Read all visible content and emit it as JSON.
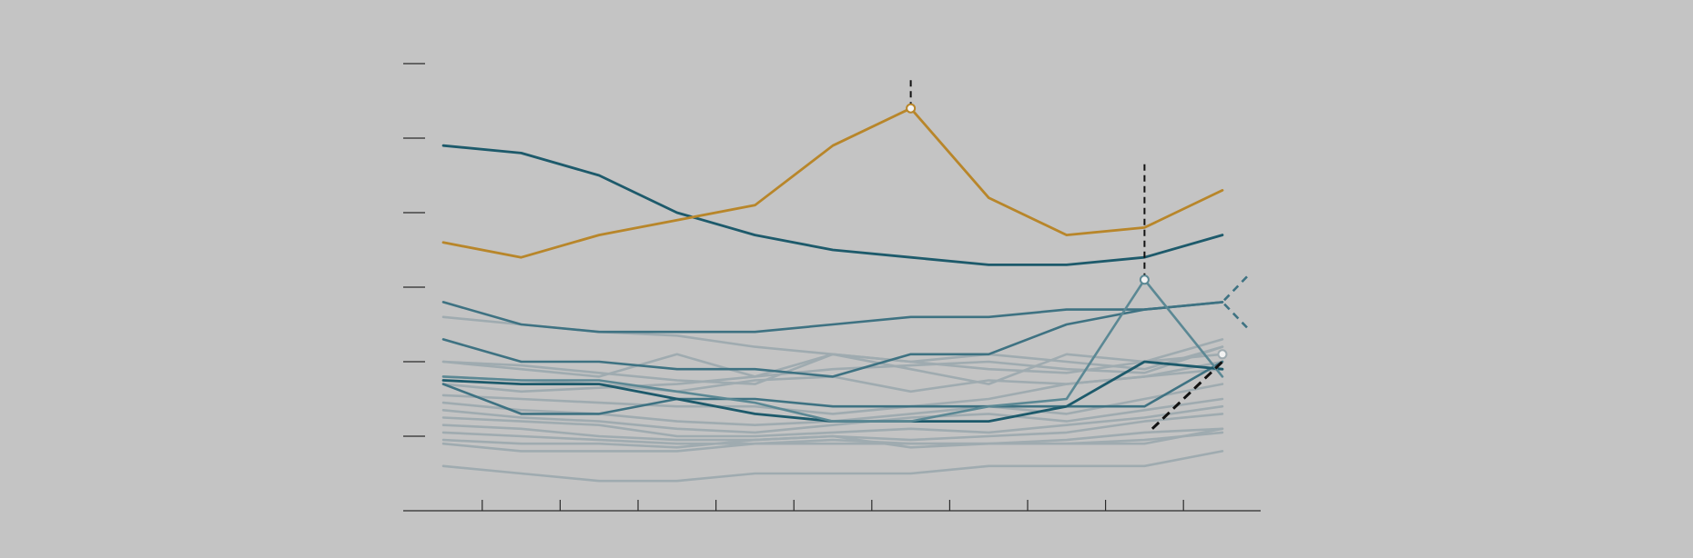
{
  "chart_data": {
    "type": "line",
    "title": "",
    "xlabel": "",
    "ylabel": "",
    "x": [
      0,
      1,
      2,
      3,
      4,
      5,
      6,
      7,
      8,
      9,
      10
    ],
    "xlim": [
      -0.5,
      10.5
    ],
    "ylim": [
      0,
      6
    ],
    "grid": false,
    "legend": "none",
    "colors": {
      "background": "#c4c4c4",
      "highlight": "#b8862a",
      "accent_dark": "#1d5a6b",
      "accent_mid": "#3e7282",
      "accent_light": "#5b8894",
      "context": "#9fabb0",
      "axis": "#2b2b2b",
      "annotation": "#111111"
    },
    "series": [
      {
        "role": "context",
        "values": [
          2.6,
          2.5,
          2.4,
          2.35,
          2.2,
          2.1,
          2.0,
          2.1,
          2.0,
          1.9,
          2.2
        ]
      },
      {
        "role": "context",
        "values": [
          2.0,
          1.9,
          1.8,
          2.1,
          1.8,
          2.1,
          1.9,
          1.7,
          2.1,
          2.0,
          2.1
        ]
      },
      {
        "role": "context",
        "values": [
          1.8,
          1.75,
          1.7,
          1.6,
          1.75,
          1.8,
          1.6,
          1.75,
          1.7,
          1.8,
          1.9
        ]
      },
      {
        "role": "context",
        "values": [
          1.55,
          1.5,
          1.45,
          1.4,
          1.4,
          1.3,
          1.4,
          1.5,
          1.7,
          1.8,
          2.0
        ]
      },
      {
        "role": "context",
        "values": [
          1.45,
          1.35,
          1.3,
          1.2,
          1.15,
          1.2,
          1.3,
          1.4,
          1.3,
          1.5,
          1.7
        ]
      },
      {
        "role": "context",
        "values": [
          1.35,
          1.25,
          1.2,
          1.1,
          1.05,
          1.15,
          1.25,
          1.3,
          1.2,
          1.35,
          1.5
        ]
      },
      {
        "role": "context",
        "values": [
          1.25,
          1.2,
          1.15,
          1.0,
          1.0,
          1.05,
          1.1,
          1.05,
          1.15,
          1.25,
          1.4
        ]
      },
      {
        "role": "context",
        "values": [
          1.15,
          1.1,
          1.0,
          0.95,
          0.95,
          1.0,
          0.95,
          1.0,
          1.05,
          1.2,
          1.3
        ]
      },
      {
        "role": "context",
        "values": [
          1.05,
          1.0,
          0.95,
          0.9,
          0.9,
          0.95,
          0.9,
          0.9,
          0.95,
          1.05,
          1.1
        ]
      },
      {
        "role": "context",
        "values": [
          0.95,
          0.9,
          0.9,
          0.85,
          0.95,
          1.0,
          0.85,
          0.9,
          0.9,
          0.95,
          1.05
        ]
      },
      {
        "role": "context",
        "values": [
          0.9,
          0.8,
          0.8,
          0.8,
          0.9,
          0.9,
          0.9,
          0.9,
          0.9,
          0.9,
          1.1
        ]
      },
      {
        "role": "context",
        "values": [
          0.6,
          0.5,
          0.4,
          0.4,
          0.5,
          0.5,
          0.5,
          0.6,
          0.6,
          0.6,
          0.8
        ]
      },
      {
        "role": "context",
        "values": [
          2.0,
          1.95,
          1.85,
          1.75,
          1.7,
          2.1,
          2.0,
          1.9,
          1.85,
          2.0,
          2.3
        ]
      },
      {
        "role": "context",
        "values": [
          1.7,
          1.6,
          1.65,
          1.7,
          1.8,
          1.9,
          1.95,
          2.0,
          1.9,
          1.85,
          2.2
        ]
      },
      {
        "role": "highlight",
        "values": [
          3.6,
          3.4,
          3.7,
          3.9,
          4.1,
          4.9,
          5.4,
          4.2,
          3.7,
          3.8,
          4.3
        ]
      },
      {
        "role": "accent_dark",
        "values": [
          4.9,
          4.8,
          4.5,
          4.0,
          3.7,
          3.5,
          3.4,
          3.3,
          3.3,
          3.4,
          3.7
        ]
      },
      {
        "role": "accent_mid",
        "values": [
          2.8,
          2.5,
          2.4,
          2.4,
          2.4,
          2.5,
          2.6,
          2.6,
          2.7,
          2.7,
          2.8
        ]
      },
      {
        "role": "accent_mid",
        "values": [
          2.3,
          2.0,
          2.0,
          1.9,
          1.9,
          1.8,
          2.1,
          2.1,
          2.5,
          2.7,
          2.8
        ]
      },
      {
        "role": "accent_mid",
        "values": [
          1.7,
          1.3,
          1.3,
          1.5,
          1.5,
          1.4,
          1.4,
          1.4,
          1.4,
          1.4,
          2.0
        ]
      },
      {
        "role": "accent_dark",
        "values": [
          1.75,
          1.7,
          1.7,
          1.5,
          1.3,
          1.2,
          1.2,
          1.2,
          1.4,
          2.0,
          1.9
        ]
      },
      {
        "role": "accent_light",
        "values": [
          1.8,
          1.75,
          1.75,
          1.6,
          1.45,
          1.2,
          1.2,
          1.4,
          1.5,
          3.1,
          1.8
        ]
      }
    ],
    "markers": [
      {
        "x": 6,
        "y": 5.4,
        "series_role": "highlight"
      },
      {
        "x": 9,
        "y": 3.1,
        "series_role": "accent_light"
      },
      {
        "x": 10,
        "y": 2.1,
        "series_role": "context"
      }
    ],
    "annotations": [
      {
        "kind": "dashed-vertical",
        "x": 6,
        "y_from": 5.4,
        "y_to": 5.8
      },
      {
        "kind": "dashed-vertical",
        "x": 9,
        "y_from": 3.1,
        "y_to": 4.7
      },
      {
        "kind": "dashed-diagonal",
        "x1": 9.1,
        "y1": 1.1,
        "x2": 10,
        "y2": 2.0
      },
      {
        "kind": "dashed-chevron",
        "x": 10,
        "y": 2.8
      }
    ],
    "yticks": [
      0,
      1,
      2,
      3,
      4,
      5,
      6
    ],
    "xticks": [
      0,
      1,
      2,
      3,
      4,
      5,
      6,
      7,
      8,
      9,
      10
    ]
  }
}
